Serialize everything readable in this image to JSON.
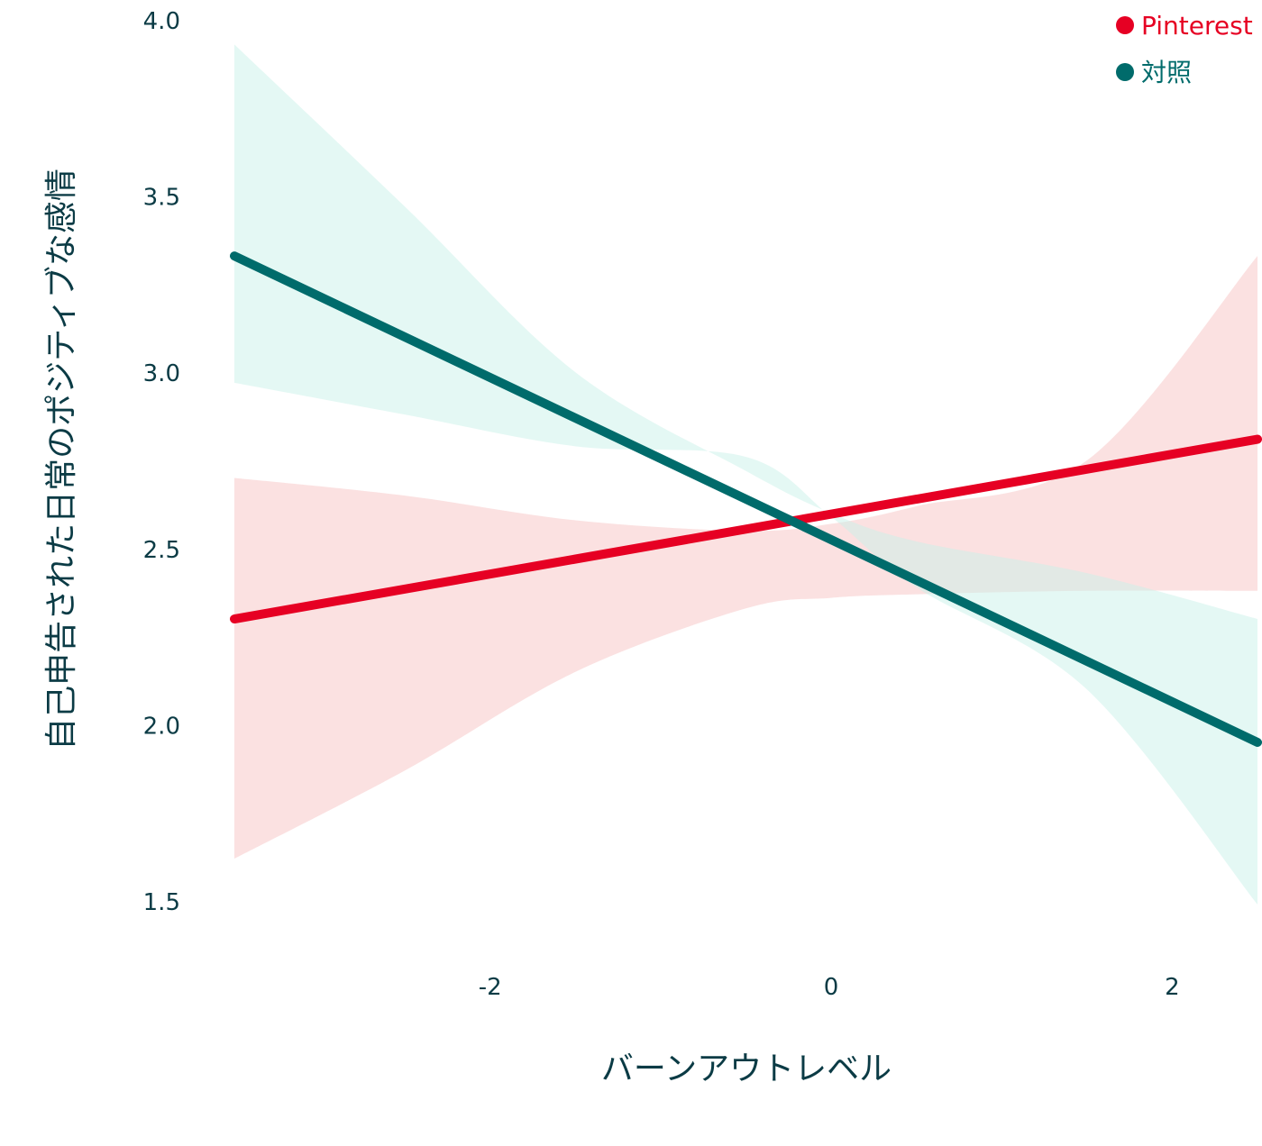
{
  "chart_data": {
    "type": "line",
    "title": "",
    "xlabel": "バーンアウトレベル",
    "ylabel": "自己申告された日常のポジティブな感情",
    "xlim": [
      -3.5,
      2.5
    ],
    "ylim": [
      1.5,
      4.0
    ],
    "x_ticks": [
      "-2",
      "0",
      "2"
    ],
    "x_tick_values": [
      -2,
      0,
      2
    ],
    "y_ticks": [
      "4.0",
      "3.5",
      "3.0",
      "2.5",
      "2.0",
      "1.5"
    ],
    "y_tick_values": [
      4.0,
      3.5,
      3.0,
      2.5,
      2.0,
      1.5
    ],
    "grid": false,
    "legend_position": "top-right",
    "series": [
      {
        "name": "Pinterest",
        "color": "#e60023",
        "band_color": "#f8c4c4",
        "x": [
          -3.5,
          2.5
        ],
        "values": [
          2.3,
          2.81
        ],
        "band_x": [
          -3.5,
          -2.5,
          -1.5,
          -0.5,
          0,
          0.5,
          1.5,
          2.5
        ],
        "band_upper": [
          2.7,
          2.65,
          2.58,
          2.55,
          2.57,
          2.62,
          2.75,
          3.33
        ],
        "band_lower": [
          1.62,
          1.87,
          2.15,
          2.33,
          2.36,
          2.37,
          2.38,
          2.38
        ]
      },
      {
        "name": "対照",
        "color": "#006b6b",
        "band_color": "#c9f2ea",
        "x": [
          -3.5,
          2.5
        ],
        "values": [
          3.33,
          1.95
        ],
        "band_x": [
          -3.5,
          -2.5,
          -1.5,
          -0.5,
          0,
          0.5,
          1.5,
          2.5
        ],
        "band_upper": [
          3.93,
          3.47,
          3.0,
          2.72,
          2.6,
          2.52,
          2.43,
          2.3
        ],
        "band_lower": [
          2.97,
          2.88,
          2.79,
          2.76,
          2.59,
          2.39,
          2.1,
          1.49
        ]
      }
    ]
  }
}
